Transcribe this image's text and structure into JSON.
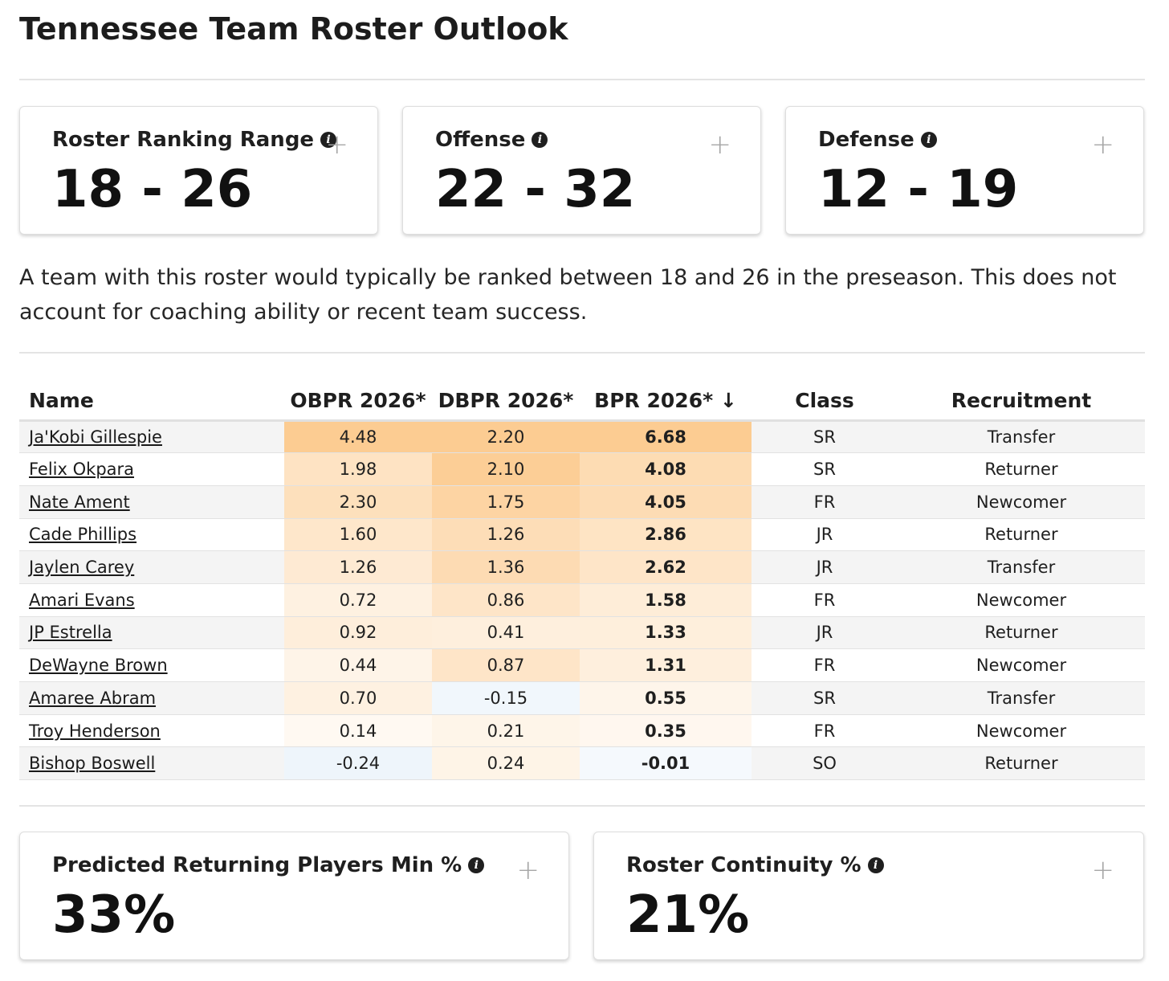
{
  "page": {
    "title": "Tennessee Team Roster Outlook"
  },
  "summary_cards": [
    {
      "label": "Roster Ranking Range",
      "value": "18 - 26"
    },
    {
      "label": "Offense",
      "value": "22 - 32"
    },
    {
      "label": "Defense",
      "value": "12 - 19"
    }
  ],
  "description": "A team with this roster would typically be ranked between 18 and 26 in the preseason. This does not account for coaching ability or recent team success.",
  "roster_table": {
    "headers": {
      "name": "Name",
      "obpr": "OBPR 2026*",
      "dbpr": "DBPR 2026*",
      "bpr": "BPR 2026* ↓",
      "class": "Class",
      "recruitment": "Recruitment"
    },
    "rows": [
      {
        "name": "Ja'Kobi Gillespie",
        "obpr": "4.48",
        "dbpr": "2.20",
        "bpr": "6.68",
        "class": "SR",
        "recruitment": "Transfer"
      },
      {
        "name": "Felix Okpara",
        "obpr": "1.98",
        "dbpr": "2.10",
        "bpr": "4.08",
        "class": "SR",
        "recruitment": "Returner"
      },
      {
        "name": "Nate Ament",
        "obpr": "2.30",
        "dbpr": "1.75",
        "bpr": "4.05",
        "class": "FR",
        "recruitment": "Newcomer"
      },
      {
        "name": "Cade Phillips",
        "obpr": "1.60",
        "dbpr": "1.26",
        "bpr": "2.86",
        "class": "JR",
        "recruitment": "Returner"
      },
      {
        "name": "Jaylen Carey",
        "obpr": "1.26",
        "dbpr": "1.36",
        "bpr": "2.62",
        "class": "JR",
        "recruitment": "Transfer"
      },
      {
        "name": "Amari Evans",
        "obpr": "0.72",
        "dbpr": "0.86",
        "bpr": "1.58",
        "class": "FR",
        "recruitment": "Newcomer"
      },
      {
        "name": "JP Estrella",
        "obpr": "0.92",
        "dbpr": "0.41",
        "bpr": "1.33",
        "class": "JR",
        "recruitment": "Returner"
      },
      {
        "name": "DeWayne Brown",
        "obpr": "0.44",
        "dbpr": "0.87",
        "bpr": "1.31",
        "class": "FR",
        "recruitment": "Newcomer"
      },
      {
        "name": "Amaree Abram",
        "obpr": "0.70",
        "dbpr": "-0.15",
        "bpr": "0.55",
        "class": "SR",
        "recruitment": "Transfer"
      },
      {
        "name": "Troy Henderson",
        "obpr": "0.14",
        "dbpr": "0.21",
        "bpr": "0.35",
        "class": "FR",
        "recruitment": "Newcomer"
      },
      {
        "name": "Bishop Boswell",
        "obpr": "-0.24",
        "dbpr": "0.24",
        "bpr": "-0.01",
        "class": "SO",
        "recruitment": "Returner"
      }
    ]
  },
  "bottom_cards": [
    {
      "label": "Predicted Returning Players Min %",
      "value": "33%"
    },
    {
      "label": "Roster Continuity %",
      "value": "21%"
    }
  ],
  "icons": {
    "info": "info-icon",
    "expand": "plus-icon"
  },
  "colors": {
    "heat_positive": "#fbb25a",
    "heat_negative": "#cfe2f3",
    "row_stripe": "#f4f4f4"
  }
}
